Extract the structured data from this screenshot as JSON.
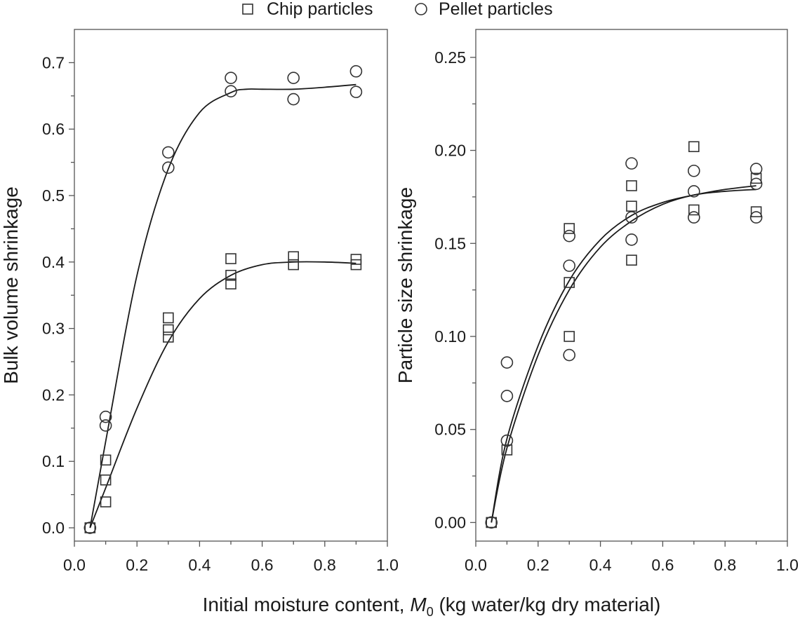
{
  "legend": {
    "chip_label": "Chip particles",
    "pellet_label": "Pellet particles"
  },
  "xlabel": {
    "prefix": "Initial moisture content, ",
    "var": "M",
    "sub": "0",
    "suffix": " (kg water/kg dry material)"
  },
  "chart_data": [
    {
      "type": "scatter",
      "ylabel": "Bulk volume shrinkage",
      "xlim": [
        0.0,
        1.0
      ],
      "ylim": [
        -0.02,
        0.75
      ],
      "xticks": [
        "0.0",
        "0.2",
        "0.4",
        "0.6",
        "0.8",
        "1.0"
      ],
      "yticks": [
        "0.0",
        "0.1",
        "0.2",
        "0.3",
        "0.4",
        "0.5",
        "0.6",
        "0.7"
      ],
      "grid": false,
      "series": [
        {
          "name": "Chip particles",
          "marker": "square",
          "points": [
            [
              0.05,
              0.0
            ],
            [
              0.1,
              0.102
            ],
            [
              0.1,
              0.072
            ],
            [
              0.1,
              0.039
            ],
            [
              0.3,
              0.316
            ],
            [
              0.3,
              0.298
            ],
            [
              0.3,
              0.287
            ],
            [
              0.5,
              0.405
            ],
            [
              0.5,
              0.38
            ],
            [
              0.5,
              0.367
            ],
            [
              0.7,
              0.408
            ],
            [
              0.7,
              0.396
            ],
            [
              0.9,
              0.404
            ],
            [
              0.9,
              0.396
            ]
          ],
          "fit": [
            [
              0.05,
              0.0
            ],
            [
              0.1,
              0.06
            ],
            [
              0.2,
              0.18
            ],
            [
              0.3,
              0.28
            ],
            [
              0.4,
              0.345
            ],
            [
              0.5,
              0.38
            ],
            [
              0.6,
              0.396
            ],
            [
              0.7,
              0.4
            ],
            [
              0.8,
              0.4
            ],
            [
              0.9,
              0.398
            ]
          ]
        },
        {
          "name": "Pellet particles",
          "marker": "circle",
          "points": [
            [
              0.05,
              0.0
            ],
            [
              0.1,
              0.167
            ],
            [
              0.1,
              0.154
            ],
            [
              0.3,
              0.565
            ],
            [
              0.3,
              0.542
            ],
            [
              0.5,
              0.677
            ],
            [
              0.5,
              0.657
            ],
            [
              0.7,
              0.677
            ],
            [
              0.7,
              0.645
            ],
            [
              0.9,
              0.687
            ],
            [
              0.9,
              0.656
            ]
          ],
          "fit": [
            [
              0.05,
              0.0
            ],
            [
              0.1,
              0.13
            ],
            [
              0.2,
              0.38
            ],
            [
              0.3,
              0.54
            ],
            [
              0.4,
              0.625
            ],
            [
              0.5,
              0.655
            ],
            [
              0.55,
              0.66
            ],
            [
              0.6,
              0.66
            ],
            [
              0.7,
              0.66
            ],
            [
              0.8,
              0.663
            ],
            [
              0.9,
              0.667
            ]
          ]
        }
      ]
    },
    {
      "type": "scatter",
      "ylabel": "Particle size shrinkage",
      "xlim": [
        0.0,
        1.0
      ],
      "ylim": [
        -0.01,
        0.265
      ],
      "xticks": [
        "0.0",
        "0.2",
        "0.4",
        "0.6",
        "0.8",
        "1.0"
      ],
      "yticks": [
        "0.00",
        "0.05",
        "0.10",
        "0.15",
        "0.20",
        "0.25"
      ],
      "grid": false,
      "series": [
        {
          "name": "Chip particles",
          "marker": "square",
          "points": [
            [
              0.05,
              0.0
            ],
            [
              0.1,
              0.039
            ],
            [
              0.3,
              0.158
            ],
            [
              0.3,
              0.129
            ],
            [
              0.3,
              0.1
            ],
            [
              0.5,
              0.181
            ],
            [
              0.5,
              0.17
            ],
            [
              0.5,
              0.141
            ],
            [
              0.7,
              0.202
            ],
            [
              0.7,
              0.168
            ],
            [
              0.9,
              0.185
            ],
            [
              0.9,
              0.167
            ]
          ],
          "fit": [
            [
              0.05,
              0.0
            ],
            [
              0.1,
              0.04
            ],
            [
              0.2,
              0.09
            ],
            [
              0.3,
              0.125
            ],
            [
              0.4,
              0.148
            ],
            [
              0.5,
              0.162
            ],
            [
              0.6,
              0.171
            ],
            [
              0.7,
              0.176
            ],
            [
              0.8,
              0.178
            ],
            [
              0.9,
              0.179
            ]
          ]
        },
        {
          "name": "Pellet particles",
          "marker": "circle",
          "points": [
            [
              0.05,
              0.0
            ],
            [
              0.1,
              0.086
            ],
            [
              0.1,
              0.068
            ],
            [
              0.1,
              0.044
            ],
            [
              0.3,
              0.154
            ],
            [
              0.3,
              0.138
            ],
            [
              0.3,
              0.09
            ],
            [
              0.5,
              0.193
            ],
            [
              0.5,
              0.164
            ],
            [
              0.5,
              0.152
            ],
            [
              0.7,
              0.189
            ],
            [
              0.7,
              0.178
            ],
            [
              0.7,
              0.164
            ],
            [
              0.9,
              0.19
            ],
            [
              0.9,
              0.182
            ],
            [
              0.9,
              0.164
            ]
          ],
          "fit": [
            [
              0.05,
              0.0
            ],
            [
              0.1,
              0.045
            ],
            [
              0.2,
              0.095
            ],
            [
              0.3,
              0.13
            ],
            [
              0.4,
              0.152
            ],
            [
              0.5,
              0.165
            ],
            [
              0.6,
              0.172
            ],
            [
              0.7,
              0.176
            ],
            [
              0.8,
              0.179
            ],
            [
              0.9,
              0.181
            ]
          ]
        }
      ]
    }
  ]
}
